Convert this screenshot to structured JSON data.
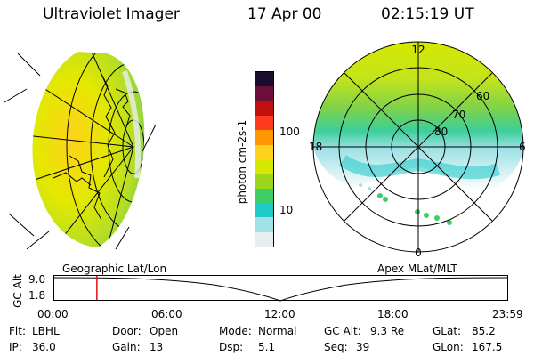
{
  "header": {
    "instrument": "Ultraviolet Imager",
    "date": "17 Apr 00",
    "time": "02:15:19 UT"
  },
  "colorbar": {
    "label": "photon cm-2s-1",
    "ticks": [
      "100",
      "10"
    ],
    "colors": [
      "#1a0d2e",
      "#6b0f3a",
      "#c01010",
      "#ff3b1f",
      "#ff9800",
      "#ffd21c",
      "#d6e800",
      "#9bd61c",
      "#3ccf67",
      "#1ec9c9",
      "#9fe1e6",
      "#e8eef0"
    ]
  },
  "polar_plot": {
    "lat_labels": [
      "80",
      "70",
      "60"
    ],
    "mlt_labels": {
      "top": "12",
      "left": "18",
      "right": "6",
      "bottom": "0"
    }
  },
  "timeline": {
    "left_title": "Geographic Lat/Lon",
    "right_title": "Apex MLat/MLT",
    "y_axis_label": "GC Alt",
    "y_ticks": [
      "9.0",
      "1.8"
    ],
    "x_ticks": [
      "00:00",
      "06:00",
      "12:00",
      "18:00",
      "23:59"
    ],
    "current_marker_fraction": 0.094
  },
  "info": {
    "flt_label": "Flt:",
    "flt_value": "LBHL",
    "ip_label": "IP:",
    "ip_value": "36.0",
    "door_label": "Door:",
    "door_value": "Open",
    "gain_label": "Gain:",
    "gain_value": "13",
    "mode_label": "Mode:",
    "mode_value": "Normal",
    "dsp_label": "Dsp:",
    "dsp_value": "5.1",
    "gcalt_label": "GC Alt:",
    "gcalt_value": "9.3 Re",
    "seq_label": "Seq:",
    "seq_value": "39",
    "glat_label": "GLat:",
    "glat_value": "85.2",
    "glon_label": "GLon:",
    "glon_value": "167.5"
  }
}
